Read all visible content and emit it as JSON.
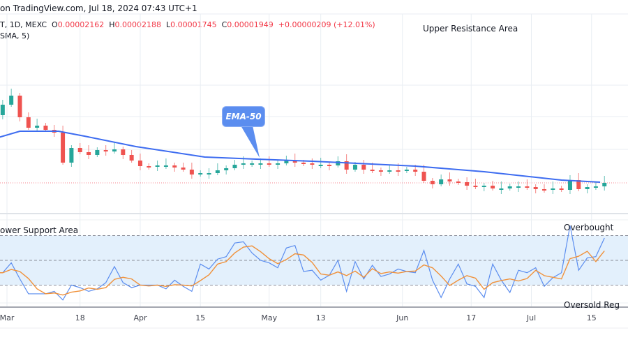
{
  "header": {
    "source": "on TradingView.com, Jul 18, 2024 07:43 UTC+1",
    "symbol": "T, 1D, MEXC",
    "o_label": "O",
    "o": "0.00002162",
    "h_label": "H",
    "h": "0.00002188",
    "l_label": "L",
    "l": "0.00001745",
    "c_label": "C",
    "c": "0.00001949",
    "change": "+0.00000209 (+12.01%)",
    "indicator": "SMA, 5)"
  },
  "annotations": {
    "upper": "Upper Resistance Area",
    "lower": "ower Support Area",
    "overbought": "Overbought",
    "oversold": "Oversold Reg",
    "ema_callout": "EMA-50"
  },
  "colors": {
    "up": "#26a69a",
    "down": "#ef5350",
    "ema": "#3d6cf0",
    "rsi": "#5b8def",
    "rsi_sma": "#f0913a",
    "band": "#e3f0fc",
    "last_price": "#f23645"
  },
  "chart_data": [
    {
      "type": "candlestick",
      "series_name": "EMA-50",
      "last_close": 1.949e-05,
      "rows": [
        [
          "2024-02-27",
          2.434e-05
        ],
        [
          "2024-02-29",
          2.509e-05
        ],
        [
          "2024-03-02",
          2.574e-05
        ],
        [
          "2024-03-04",
          2.419e-05
        ],
        [
          "2024-03-06",
          2.344e-05
        ],
        [
          "2024-03-08",
          2.359e-05
        ],
        [
          "2024-03-10",
          2.329e-05
        ],
        [
          "2024-03-12",
          2.309e-05
        ],
        [
          "2024-03-14",
          2.094e-05
        ],
        [
          "2024-03-16",
          2.199e-05
        ],
        [
          "2024-03-18",
          2.169e-05
        ],
        [
          "2024-03-20",
          2.149e-05
        ],
        [
          "2024-03-22",
          2.184e-05
        ],
        [
          "2024-03-24",
          2.174e-05
        ],
        [
          "2024-03-26",
          2.189e-05
        ],
        [
          "2024-03-28",
          2.149e-05
        ],
        [
          "2024-03-30",
          2.109e-05
        ],
        [
          "2024-04-01",
          2.069e-05
        ],
        [
          "2024-04-03",
          2.064e-05
        ],
        [
          "2024-04-05",
          2.074e-05
        ],
        [
          "2024-04-07",
          2.074e-05
        ],
        [
          "2024-04-09",
          2.059e-05
        ],
        [
          "2024-04-11",
          2.044e-05
        ],
        [
          "2024-04-13",
          2.009e-05
        ],
        [
          "2024-04-15",
          2.019e-05
        ],
        [
          "2024-04-17",
          2.019e-05
        ],
        [
          "2024-04-19",
          2.039e-05
        ],
        [
          "2024-04-21",
          2.054e-05
        ],
        [
          "2024-04-23",
          2.079e-05
        ],
        [
          "2024-04-25",
          2.089e-05
        ],
        [
          "2024-04-27",
          2.089e-05
        ],
        [
          "2024-04-29",
          2.089e-05
        ],
        [
          "2024-05-01",
          2.079e-05
        ],
        [
          "2024-05-03",
          2.089e-05
        ],
        [
          "2024-05-05",
          2.109e-05
        ],
        [
          "2024-05-07",
          2.094e-05
        ],
        [
          "2024-05-09",
          2.089e-05
        ],
        [
          "2024-05-11",
          2.079e-05
        ],
        [
          "2024-05-13",
          2.079e-05
        ],
        [
          "2024-05-15",
          2.074e-05
        ],
        [
          "2024-05-17",
          2.104e-05
        ],
        [
          "2024-05-19",
          2.044e-05
        ],
        [
          "2024-05-21",
          2.079e-05
        ],
        [
          "2024-05-23",
          2.044e-05
        ],
        [
          "2024-05-25",
          2.039e-05
        ],
        [
          "2024-05-27",
          2.034e-05
        ],
        [
          "2024-05-29",
          2.039e-05
        ],
        [
          "2024-05-31",
          2.034e-05
        ],
        [
          "2024-06-02",
          2.044e-05
        ],
        [
          "2024-06-04",
          2.029e-05
        ],
        [
          "2024-06-06",
          1.964e-05
        ],
        [
          "2024-06-08",
          1.939e-05
        ],
        [
          "2024-06-10",
          1.974e-05
        ],
        [
          "2024-06-12",
          1.959e-05
        ],
        [
          "2024-06-14",
          1.954e-05
        ],
        [
          "2024-06-16",
          1.929e-05
        ],
        [
          "2024-06-18",
          1.924e-05
        ],
        [
          "2024-06-20",
          1.929e-05
        ],
        [
          "2024-06-22",
          1.909e-05
        ],
        [
          "2024-06-24",
          1.909e-05
        ],
        [
          "2024-06-26",
          1.924e-05
        ],
        [
          "2024-06-28",
          1.924e-05
        ],
        [
          "2024-06-30",
          1.919e-05
        ],
        [
          "2024-07-02",
          1.904e-05
        ],
        [
          "2024-07-04",
          1.899e-05
        ],
        [
          "2024-07-06",
          1.909e-05
        ],
        [
          "2024-07-08",
          1.899e-05
        ],
        [
          "2024-07-10",
          1.969e-05
        ],
        [
          "2024-07-12",
          1.904e-05
        ],
        [
          "2024-07-14",
          1.919e-05
        ],
        [
          "2024-07-16",
          1.924e-05
        ],
        [
          "2024-07-18",
          1.949e-05
        ]
      ],
      "ema50": [
        [
          "2024-02-28",
          2.274e-05
        ],
        [
          "2024-03-04",
          2.319e-05
        ],
        [
          "2024-03-13",
          2.319e-05
        ],
        [
          "2024-03-19",
          2.284e-05
        ],
        [
          "2024-03-31",
          2.209e-05
        ],
        [
          "2024-04-16",
          2.134e-05
        ],
        [
          "2024-04-28",
          2.119e-05
        ],
        [
          "2024-05-11",
          2.104e-05
        ],
        [
          "2024-06-04",
          2.069e-05
        ],
        [
          "2024-06-20",
          2.029e-05
        ],
        [
          "2024-07-08",
          1.969e-05
        ],
        [
          "2024-07-17",
          1.954e-05
        ]
      ],
      "x_tick_labels": [
        "Mar",
        "18",
        "Apr",
        "15",
        "May",
        "13",
        "Jun",
        "17",
        "Jul",
        "15"
      ],
      "x_tick_dates": [
        "2024-03-01",
        "2024-03-18",
        "2024-04-01",
        "2024-04-15",
        "2024-05-01",
        "2024-05-13",
        "2024-06-01",
        "2024-06-17",
        "2024-07-01",
        "2024-07-15"
      ],
      "grid": true
    },
    {
      "type": "line",
      "ylim": [
        12,
        83
      ],
      "levels": [
        70,
        50,
        30
      ],
      "series": [
        {
          "key": "rsi"
        },
        {
          "key": "rsi_sma",
          "period": 5
        }
      ],
      "rsi": [
        40,
        40,
        48,
        35,
        23,
        23,
        23,
        25,
        18,
        30,
        28,
        25,
        27,
        32,
        45,
        32,
        28,
        30,
        30,
        30,
        27,
        34,
        29,
        25,
        47,
        43,
        51,
        53,
        64,
        65,
        56,
        50,
        48,
        44,
        60,
        62,
        41,
        42,
        34,
        38,
        50,
        25,
        49,
        35,
        46,
        37,
        39,
        43,
        41,
        40,
        58,
        34,
        20,
        35,
        47,
        31,
        29,
        20,
        47,
        34,
        24,
        42,
        40,
        44,
        29,
        36,
        40,
        78,
        42,
        52,
        53,
        68
      ]
    }
  ]
}
